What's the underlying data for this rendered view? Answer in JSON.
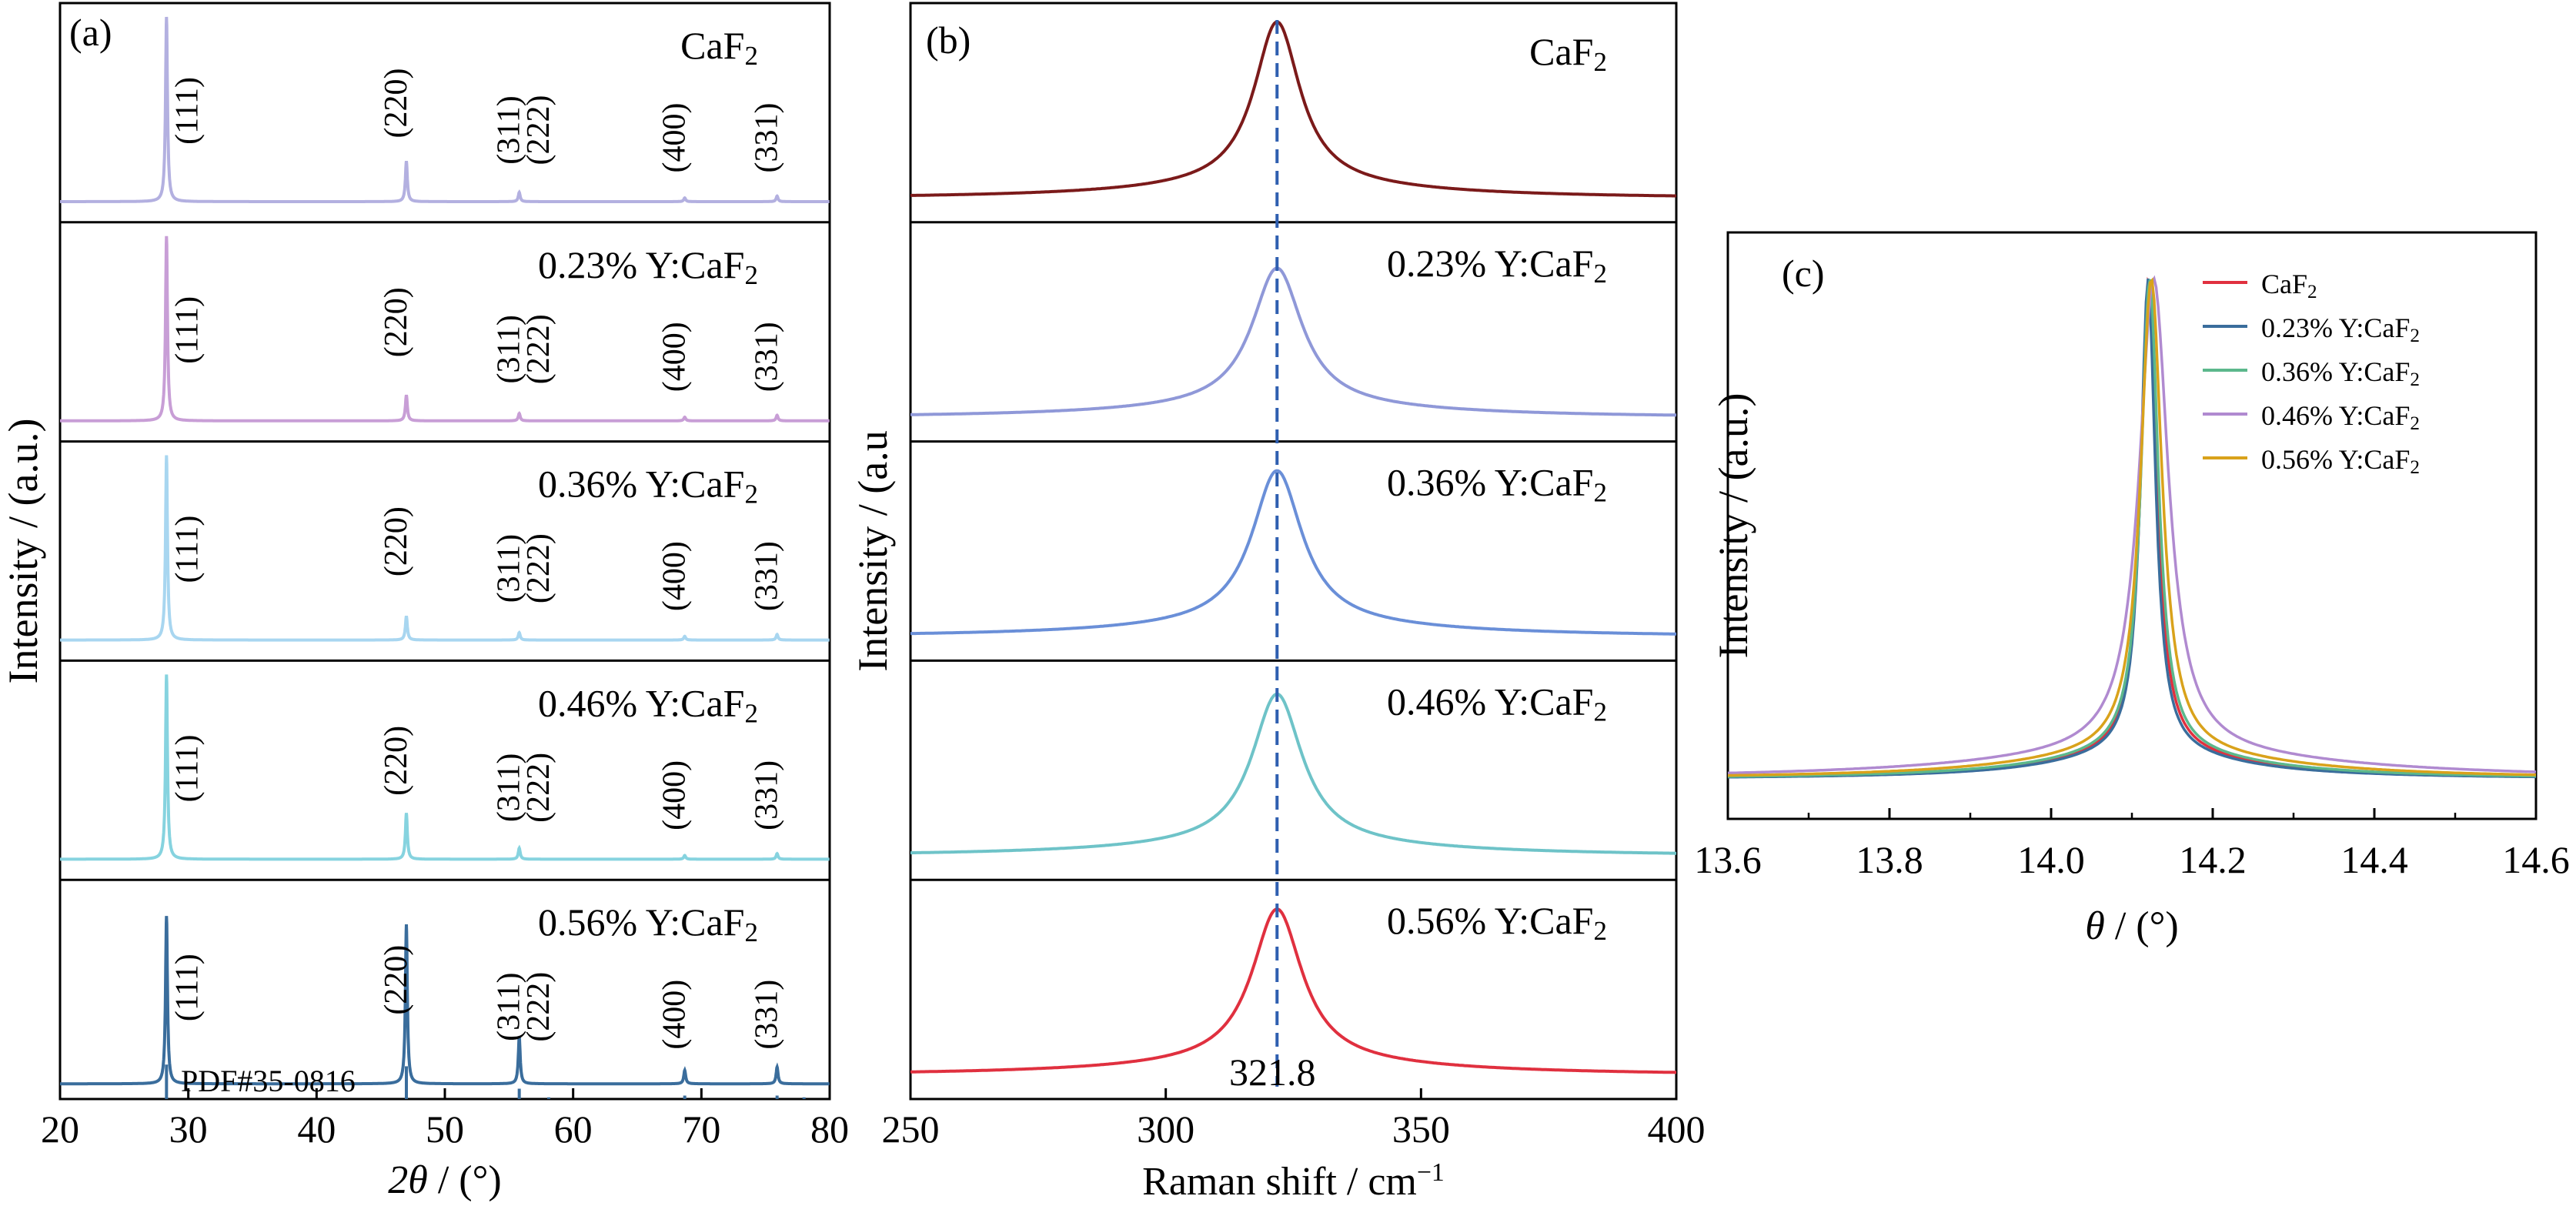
{
  "chart_data": [
    {
      "panel": "(a)",
      "type": "line",
      "xlabel_italic": "2θ",
      "xlabel_unit": " / (°)",
      "ylabel": "Intensity / (a.u.)",
      "xlim": [
        20,
        80
      ],
      "xticks": [
        "20",
        "30",
        "40",
        "50",
        "60",
        "70",
        "80"
      ],
      "series": [
        {
          "name": "CaF₂",
          "color": "#b3b0e0",
          "peaks": [
            {
              "x": 28.3,
              "h": 1.0
            },
            {
              "x": 47.0,
              "h": 0.22
            },
            {
              "x": 55.8,
              "h": 0.05
            },
            {
              "x": 68.7,
              "h": 0.02
            },
            {
              "x": 75.9,
              "h": 0.03
            }
          ],
          "labels": [
            {
              "text": "(111)",
              "x": 28.3
            },
            {
              "text": "(220)",
              "x": 47.0
            },
            {
              "text": "(311)",
              "x": 55.8
            },
            {
              "text": "(222)",
              "x": 58.1
            },
            {
              "text": "(400)",
              "x": 68.7
            },
            {
              "text": "(331)",
              "x": 75.9
            }
          ]
        },
        {
          "name": "0.23% Y:CaF₂",
          "color": "#c89ed6",
          "peaks": [
            {
              "x": 28.3,
              "h": 1.0
            },
            {
              "x": 47.0,
              "h": 0.14
            },
            {
              "x": 55.8,
              "h": 0.04
            },
            {
              "x": 68.7,
              "h": 0.02
            },
            {
              "x": 75.9,
              "h": 0.03
            }
          ],
          "labels": [
            {
              "text": "(111)",
              "x": 28.3
            },
            {
              "text": "(220)",
              "x": 47.0
            },
            {
              "text": "(311)",
              "x": 55.8
            },
            {
              "text": "(222)",
              "x": 58.1
            },
            {
              "text": "(400)",
              "x": 68.7
            },
            {
              "text": "(331)",
              "x": 75.9
            }
          ]
        },
        {
          "name": "0.36% Y:CaF₂",
          "color": "#a8d6f0",
          "peaks": [
            {
              "x": 28.3,
              "h": 1.0
            },
            {
              "x": 47.0,
              "h": 0.13
            },
            {
              "x": 55.8,
              "h": 0.04
            },
            {
              "x": 68.7,
              "h": 0.02
            },
            {
              "x": 75.9,
              "h": 0.03
            }
          ],
          "labels": [
            {
              "text": "(111)",
              "x": 28.3
            },
            {
              "text": "(220)",
              "x": 47.0
            },
            {
              "text": "(311)",
              "x": 55.8
            },
            {
              "text": "(222)",
              "x": 58.1
            },
            {
              "text": "(400)",
              "x": 68.7
            },
            {
              "text": "(331)",
              "x": 75.9
            }
          ]
        },
        {
          "name": "0.46% Y:CaF₂",
          "color": "#86d3df",
          "peaks": [
            {
              "x": 28.3,
              "h": 1.0
            },
            {
              "x": 47.0,
              "h": 0.25
            },
            {
              "x": 55.8,
              "h": 0.06
            },
            {
              "x": 68.7,
              "h": 0.02
            },
            {
              "x": 75.9,
              "h": 0.03
            }
          ],
          "labels": [
            {
              "text": "(111)",
              "x": 28.3
            },
            {
              "text": "(220)",
              "x": 47.0
            },
            {
              "text": "(311)",
              "x": 55.8
            },
            {
              "text": "(222)",
              "x": 58.1
            },
            {
              "text": "(400)",
              "x": 68.7
            },
            {
              "text": "(331)",
              "x": 75.9
            }
          ]
        },
        {
          "name": "0.56% Y:CaF₂",
          "color": "#3a6d9c",
          "peaks": [
            {
              "x": 28.3,
              "h": 1.0
            },
            {
              "x": 47.0,
              "h": 0.95
            },
            {
              "x": 55.8,
              "h": 0.28
            },
            {
              "x": 68.7,
              "h": 0.08
            },
            {
              "x": 75.9,
              "h": 0.1
            }
          ],
          "labels": [
            {
              "text": "(111)",
              "x": 28.3
            },
            {
              "text": "(220)",
              "x": 47.0
            },
            {
              "text": "(311)",
              "x": 55.8
            },
            {
              "text": "(222)",
              "x": 58.1
            },
            {
              "text": "(400)",
              "x": 68.7
            },
            {
              "text": "(331)",
              "x": 75.9
            }
          ]
        }
      ],
      "reference": {
        "name": "PDF#35-0816",
        "color": "#3a6d9c",
        "lines": [
          {
            "x": 28.3,
            "h": 1.0
          },
          {
            "x": 47.0,
            "h": 0.95
          },
          {
            "x": 55.8,
            "h": 0.3
          },
          {
            "x": 58.1,
            "h": 0.05
          },
          {
            "x": 68.7,
            "h": 0.1
          },
          {
            "x": 75.9,
            "h": 0.1
          },
          {
            "x": 78.0,
            "h": 0.05
          }
        ]
      }
    },
    {
      "panel": "(b)",
      "type": "line",
      "xlabel": "Raman shift / cm",
      "xlabel_sup": "−1",
      "ylabel": "Intensity / (a.u",
      "xlim": [
        250,
        400
      ],
      "xticks": [
        "250",
        "300",
        "350",
        "400"
      ],
      "peak_x": 321.8,
      "peak_label": "321.8",
      "series": [
        {
          "name": "CaF₂",
          "color": "#7b1a1a",
          "height": 0.85,
          "hwhm": 5.5
        },
        {
          "name": "0.23% Y:CaF₂",
          "color": "#8f98d8",
          "height": 0.72,
          "hwhm": 6
        },
        {
          "name": "0.36% Y:CaF₂",
          "color": "#6a8fd8",
          "height": 0.8,
          "hwhm": 6
        },
        {
          "name": "0.46% Y:CaF₂",
          "color": "#6ec3c8",
          "height": 0.78,
          "hwhm": 6
        },
        {
          "name": "0.56% Y:CaF₂",
          "color": "#e0303f",
          "height": 0.8,
          "hwhm": 6
        }
      ]
    },
    {
      "panel": "(c)",
      "type": "line",
      "xlabel_italic": "θ",
      "xlabel_unit": " / (°)",
      "ylabel": "Intensity / (a.u.)",
      "xlim": [
        13.6,
        14.6
      ],
      "xticks": [
        "13.6",
        "13.8",
        "14.0",
        "14.2",
        "14.4",
        "14.6"
      ],
      "legend_position": "top-right",
      "series": [
        {
          "name": "CaF₂",
          "color": "#e0303f",
          "center": 14.121,
          "hwhm": 0.012
        },
        {
          "name": "0.23% Y:CaF₂",
          "color": "#3a6d9c",
          "center": 14.12,
          "hwhm": 0.011
        },
        {
          "name": "0.36% Y:CaF₂",
          "color": "#5cb88c",
          "center": 14.122,
          "hwhm": 0.013
        },
        {
          "name": "0.46% Y:CaF₂",
          "color": "#b08ad0",
          "center": 14.127,
          "hwhm": 0.022
        },
        {
          "name": "0.56% Y:CaF₂",
          "color": "#d9a21b",
          "center": 14.124,
          "hwhm": 0.016
        }
      ]
    }
  ]
}
